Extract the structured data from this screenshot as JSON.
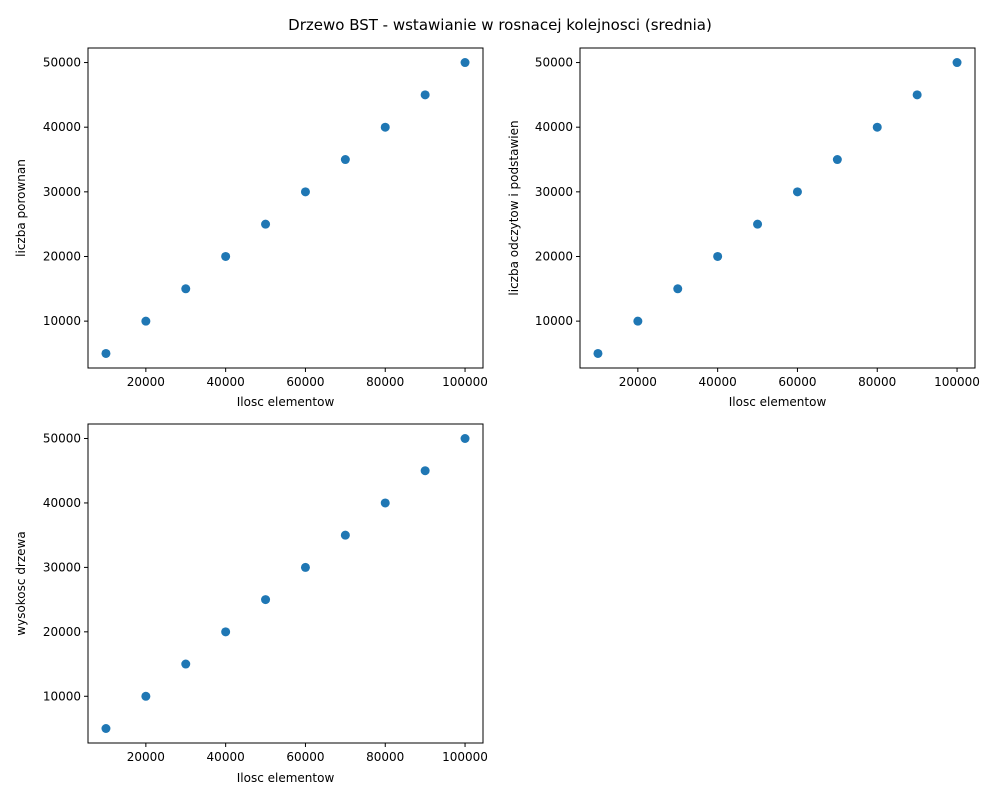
{
  "figure": {
    "suptitle": "Drzewo BST - wstawianie w rosnacej kolejnosci (srednia)",
    "marker_color": "#1f77b4"
  },
  "chart_data": [
    {
      "type": "scatter",
      "xlabel": "Ilosc elementow",
      "ylabel": "liczba porownan",
      "x": [
        10000,
        20000,
        30000,
        40000,
        50000,
        60000,
        70000,
        80000,
        90000,
        100000
      ],
      "y": [
        5000,
        10000,
        15000,
        20000,
        25000,
        30000,
        35000,
        40000,
        45000,
        50000
      ],
      "xlim": [
        5500,
        104500
      ],
      "ylim": [
        2750,
        52250
      ],
      "xticks": [
        20000,
        40000,
        60000,
        80000,
        100000
      ],
      "yticks": [
        10000,
        20000,
        30000,
        40000,
        50000
      ],
      "grid": false
    },
    {
      "type": "scatter",
      "xlabel": "Ilosc elementow",
      "ylabel": "liczba odczytow i podstawien",
      "x": [
        10000,
        20000,
        30000,
        40000,
        50000,
        60000,
        70000,
        80000,
        90000,
        100000
      ],
      "y": [
        5000,
        10000,
        15000,
        20000,
        25000,
        30000,
        35000,
        40000,
        45000,
        50000
      ],
      "xlim": [
        5500,
        104500
      ],
      "ylim": [
        2750,
        52250
      ],
      "xticks": [
        20000,
        40000,
        60000,
        80000,
        100000
      ],
      "yticks": [
        10000,
        20000,
        30000,
        40000,
        50000
      ],
      "grid": false
    },
    {
      "type": "scatter",
      "xlabel": "Ilosc elementow",
      "ylabel": "wysokosc drzewa",
      "x": [
        10000,
        20000,
        30000,
        40000,
        50000,
        60000,
        70000,
        80000,
        90000,
        100000
      ],
      "y": [
        5000,
        10000,
        15000,
        20000,
        25000,
        30000,
        35000,
        40000,
        45000,
        50000
      ],
      "xlim": [
        5500,
        104500
      ],
      "ylim": [
        2750,
        52250
      ],
      "xticks": [
        20000,
        40000,
        60000,
        80000,
        100000
      ],
      "yticks": [
        10000,
        20000,
        30000,
        40000,
        50000
      ],
      "grid": false
    }
  ]
}
